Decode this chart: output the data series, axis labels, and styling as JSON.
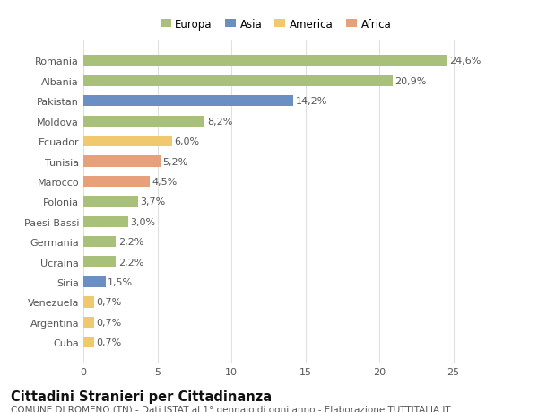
{
  "categories": [
    "Romania",
    "Albania",
    "Pakistan",
    "Moldova",
    "Ecuador",
    "Tunisia",
    "Marocco",
    "Polonia",
    "Paesi Bassi",
    "Germania",
    "Ucraina",
    "Siria",
    "Venezuela",
    "Argentina",
    "Cuba"
  ],
  "values": [
    24.6,
    20.9,
    14.2,
    8.2,
    6.0,
    5.2,
    4.5,
    3.7,
    3.0,
    2.2,
    2.2,
    1.5,
    0.7,
    0.7,
    0.7
  ],
  "labels": [
    "24,6%",
    "20,9%",
    "14,2%",
    "8,2%",
    "6,0%",
    "5,2%",
    "4,5%",
    "3,7%",
    "3,0%",
    "2,2%",
    "2,2%",
    "1,5%",
    "0,7%",
    "0,7%",
    "0,7%"
  ],
  "colors": [
    "#a8c07a",
    "#a8c07a",
    "#6b8fc2",
    "#a8c07a",
    "#f0c96e",
    "#e8a07a",
    "#e8a07a",
    "#a8c07a",
    "#a8c07a",
    "#a8c07a",
    "#a8c07a",
    "#6b8fc2",
    "#f0c96e",
    "#f0c96e",
    "#f0c96e"
  ],
  "legend": [
    {
      "label": "Europa",
      "color": "#a8c07a"
    },
    {
      "label": "Asia",
      "color": "#6b8fc2"
    },
    {
      "label": "America",
      "color": "#f0c96e"
    },
    {
      "label": "Africa",
      "color": "#e8a07a"
    }
  ],
  "title": "Cittadini Stranieri per Cittadinanza",
  "subtitle": "COMUNE DI ROMENO (TN) - Dati ISTAT al 1° gennaio di ogni anno - Elaborazione TUTTITALIA.IT",
  "xlim": [
    0,
    26
  ],
  "xticks": [
    0,
    5,
    10,
    15,
    20,
    25
  ],
  "background_color": "#ffffff",
  "plot_bg_color": "#ffffff",
  "grid_color": "#e0e0e0",
  "bar_height": 0.55,
  "label_fontsize": 8.0,
  "tick_fontsize": 8.0,
  "ytick_fontsize": 8.0,
  "title_fontsize": 10.5,
  "subtitle_fontsize": 7.5,
  "text_color": "#555555"
}
